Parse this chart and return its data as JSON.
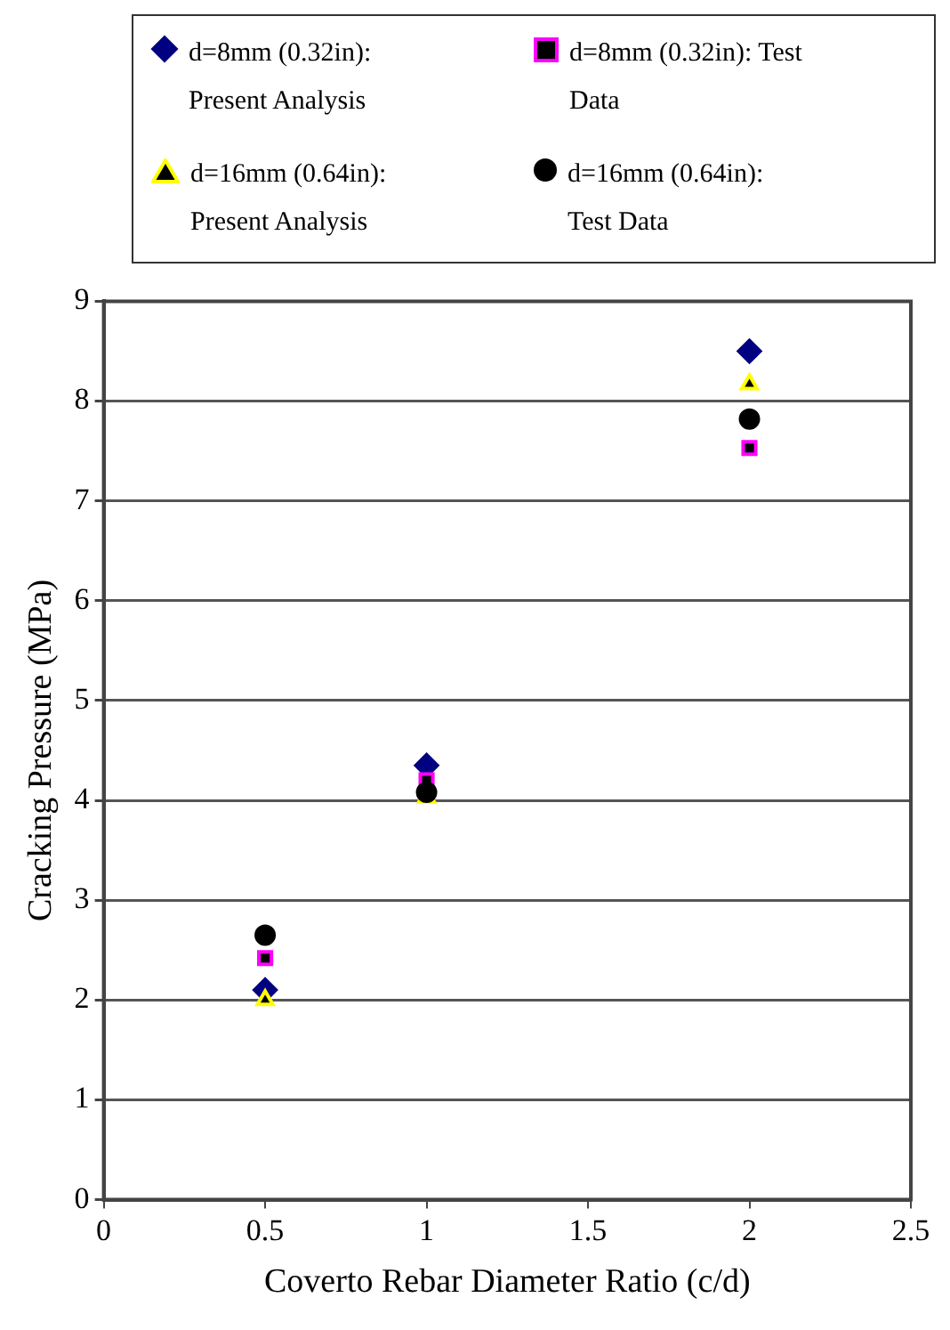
{
  "chart_data": {
    "type": "scatter",
    "xlabel": "Coverto Rebar Diameter Ratio (c/d)",
    "ylabel": "Cracking Pressure (MPa)",
    "xlim": [
      0,
      2.5
    ],
    "xticks": [
      0,
      0.5,
      1,
      1.5,
      2,
      2.5
    ],
    "ylim": [
      0,
      9
    ],
    "yticks": [
      0,
      1,
      2,
      3,
      4,
      5,
      6,
      7,
      8,
      9
    ],
    "grid": "y",
    "legend": "top",
    "x": [
      0.5,
      1,
      2
    ],
    "series": [
      {
        "name": "d=8mm (0.32in): Present Analysis",
        "color": "#000080",
        "marker": "diamond",
        "values": [
          2.1,
          4.35,
          8.5
        ]
      },
      {
        "name": "d=8mm (0.32in): Test Data",
        "color": "#ff00ff",
        "marker": "square",
        "values": [
          2.42,
          4.2,
          7.53
        ]
      },
      {
        "name": "d=16mm (0.64in): Present Analysis",
        "color": "#ffff00",
        "marker": "triangle",
        "values": [
          2.0,
          4.03,
          8.17
        ]
      },
      {
        "name": "d=16mm (0.64in): Test Data",
        "color": "#000000",
        "marker": "circle",
        "values": [
          2.65,
          4.08,
          7.82
        ]
      }
    ]
  }
}
